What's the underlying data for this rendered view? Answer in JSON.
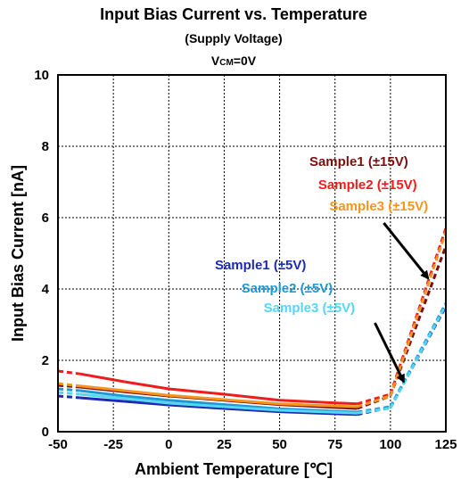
{
  "chart_data": {
    "type": "line",
    "title": "Input Bias Current vs. Temperature",
    "subtitle": "(Supply Voltage)",
    "condition": {
      "main": "V",
      "sub": "CM",
      "rest": "=0V"
    },
    "xlabel": "Ambient Temperature [℃]",
    "ylabel": "Input Bias Current [nA]",
    "xlim": [
      -50,
      125
    ],
    "ylim": [
      0,
      10
    ],
    "xticks": [
      -50,
      -25,
      0,
      25,
      50,
      75,
      100,
      125
    ],
    "yticks": [
      0,
      2,
      4,
      6,
      8,
      10
    ],
    "grid": true,
    "series": [
      {
        "name": "Sample1 (±15V)",
        "color": "#7b0f0f",
        "x": [
          -50,
          -40,
          -20,
          0,
          25,
          50,
          85,
          100,
          125
        ],
        "y": [
          1.3,
          1.25,
          1.12,
          1.0,
          0.88,
          0.76,
          0.65,
          1.0,
          5.2
        ]
      },
      {
        "name": "Sample2 (±15V)",
        "color": "#ee1c1c",
        "x": [
          -50,
          -40,
          -20,
          0,
          25,
          50,
          85,
          100,
          125
        ],
        "y": [
          1.7,
          1.62,
          1.4,
          1.2,
          1.05,
          0.88,
          0.78,
          1.05,
          5.7
        ]
      },
      {
        "name": "Sample3 (±15V)",
        "color": "#f7941d",
        "x": [
          -50,
          -40,
          -20,
          0,
          25,
          50,
          85,
          100,
          125
        ],
        "y": [
          1.35,
          1.28,
          1.15,
          1.02,
          0.9,
          0.78,
          0.7,
          1.0,
          5.6
        ]
      },
      {
        "name": "Sample1 (±5V)",
        "color": "#1c2bb0",
        "x": [
          -50,
          -40,
          -20,
          0,
          25,
          50,
          85,
          100,
          125
        ],
        "y": [
          1.0,
          0.95,
          0.85,
          0.75,
          0.65,
          0.56,
          0.48,
          0.68,
          3.5
        ]
      },
      {
        "name": "Sample2 (±5V)",
        "color": "#1b9ad6",
        "x": [
          -50,
          -40,
          -20,
          0,
          25,
          50,
          85,
          100,
          125
        ],
        "y": [
          1.2,
          1.15,
          1.0,
          0.88,
          0.76,
          0.64,
          0.55,
          0.7,
          3.6
        ]
      },
      {
        "name": "Sample3 (±5V)",
        "color": "#55d6f2",
        "x": [
          -50,
          -40,
          -20,
          0,
          25,
          50,
          85,
          100,
          125
        ],
        "y": [
          1.1,
          1.05,
          0.93,
          0.8,
          0.7,
          0.6,
          0.52,
          0.66,
          3.55
        ]
      }
    ],
    "dashed_segments_x": [
      [
        -50,
        -40
      ],
      [
        85,
        125
      ]
    ],
    "annotations": [
      {
        "text": "Sample1 (±15V)",
        "color": "#7b0f0f",
        "x": 108,
        "y": 7.45
      },
      {
        "text": "Sample2 (±15V)",
        "color": "#ee1c1c",
        "x": 112,
        "y": 6.8
      },
      {
        "text": "Sample3 (±15V)",
        "color": "#f7941d",
        "x": 117,
        "y": 6.2
      },
      {
        "text": "Sample1 (±5V)",
        "color": "#1c2bb0",
        "x": 62,
        "y": 4.55
      },
      {
        "text": "Sample2 (±5V)",
        "color": "#1b9ad6",
        "x": 74,
        "y": 3.9
      },
      {
        "text": "Sample3 (±5V)",
        "color": "#55d6f2",
        "x": 84,
        "y": 3.35
      }
    ],
    "arrows": [
      {
        "from": [
          97,
          5.85
        ],
        "to": [
          117,
          4.3
        ]
      },
      {
        "from": [
          93,
          3.05
        ],
        "to": [
          106,
          1.4
        ]
      }
    ]
  }
}
